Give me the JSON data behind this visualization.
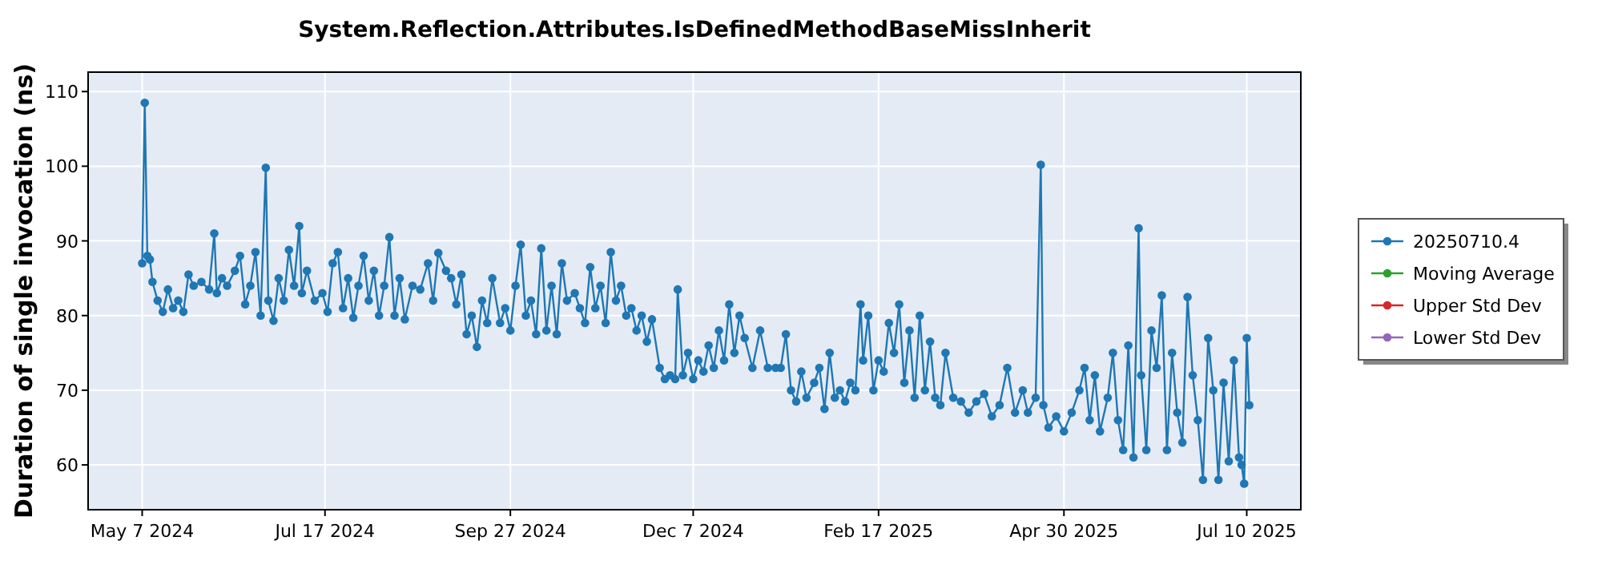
{
  "chart_data": {
    "type": "line",
    "title": "System.Reflection.Attributes.IsDefinedMethodBaseMissInherit",
    "ylabel": "Duration of single invocation (ns)",
    "xlim": [
      "2024-04-16",
      "2025-07-31"
    ],
    "xticks": [
      {
        "value": "2024-05-07",
        "label": "May 7 2024"
      },
      {
        "value": "2024-07-17",
        "label": "Jul 17 2024"
      },
      {
        "value": "2024-09-27",
        "label": "Sep 27 2024"
      },
      {
        "value": "2024-12-07",
        "label": "Dec 7 2024"
      },
      {
        "value": "2025-02-17",
        "label": "Feb 17 2025"
      },
      {
        "value": "2025-04-30",
        "label": "Apr 30 2025"
      },
      {
        "value": "2025-07-10",
        "label": "Jul 10 2025"
      }
    ],
    "ylim": [
      54,
      112.6
    ],
    "yticks": [
      60,
      70,
      80,
      90,
      100,
      110
    ],
    "grid": true,
    "legend": "right",
    "marker": "circle",
    "line_style": "solid",
    "series": [
      {
        "name": "20250710.4",
        "color": "#1f77b4",
        "x": [
          "2024-05-07",
          "2024-05-08",
          "2024-05-09",
          "2024-05-10",
          "2024-05-11",
          "2024-05-13",
          "2024-05-15",
          "2024-05-17",
          "2024-05-19",
          "2024-05-21",
          "2024-05-23",
          "2024-05-25",
          "2024-05-27",
          "2024-05-30",
          "2024-06-02",
          "2024-06-04",
          "2024-06-05",
          "2024-06-07",
          "2024-06-09",
          "2024-06-12",
          "2024-06-14",
          "2024-06-16",
          "2024-06-18",
          "2024-06-20",
          "2024-06-22",
          "2024-06-24",
          "2024-06-25",
          "2024-06-27",
          "2024-06-29",
          "2024-07-01",
          "2024-07-03",
          "2024-07-05",
          "2024-07-07",
          "2024-07-08",
          "2024-07-10",
          "2024-07-13",
          "2024-07-16",
          "2024-07-18",
          "2024-07-20",
          "2024-07-22",
          "2024-07-24",
          "2024-07-26",
          "2024-07-28",
          "2024-07-30",
          "2024-08-01",
          "2024-08-03",
          "2024-08-05",
          "2024-08-07",
          "2024-08-09",
          "2024-08-11",
          "2024-08-13",
          "2024-08-15",
          "2024-08-17",
          "2024-08-20",
          "2024-08-23",
          "2024-08-26",
          "2024-08-28",
          "2024-08-30",
          "2024-09-02",
          "2024-09-04",
          "2024-09-06",
          "2024-09-08",
          "2024-09-10",
          "2024-09-12",
          "2024-09-14",
          "2024-09-16",
          "2024-09-18",
          "2024-09-20",
          "2024-09-23",
          "2024-09-25",
          "2024-09-27",
          "2024-09-29",
          "2024-10-01",
          "2024-10-03",
          "2024-10-05",
          "2024-10-07",
          "2024-10-09",
          "2024-10-11",
          "2024-10-13",
          "2024-10-15",
          "2024-10-17",
          "2024-10-19",
          "2024-10-22",
          "2024-10-24",
          "2024-10-26",
          "2024-10-28",
          "2024-10-30",
          "2024-11-01",
          "2024-11-03",
          "2024-11-05",
          "2024-11-07",
          "2024-11-09",
          "2024-11-11",
          "2024-11-13",
          "2024-11-15",
          "2024-11-17",
          "2024-11-19",
          "2024-11-21",
          "2024-11-24",
          "2024-11-26",
          "2024-11-28",
          "2024-11-30",
          "2024-12-01",
          "2024-12-03",
          "2024-12-05",
          "2024-12-07",
          "2024-12-09",
          "2024-12-11",
          "2024-12-13",
          "2024-12-15",
          "2024-12-17",
          "2024-12-19",
          "2024-12-21",
          "2024-12-23",
          "2024-12-25",
          "2024-12-27",
          "2024-12-30",
          "2025-01-02",
          "2025-01-05",
          "2025-01-08",
          "2025-01-10",
          "2025-01-12",
          "2025-01-14",
          "2025-01-16",
          "2025-01-18",
          "2025-01-20",
          "2025-01-23",
          "2025-01-25",
          "2025-01-27",
          "2025-01-29",
          "2025-01-31",
          "2025-02-02",
          "2025-02-04",
          "2025-02-06",
          "2025-02-08",
          "2025-02-10",
          "2025-02-11",
          "2025-02-13",
          "2025-02-15",
          "2025-02-17",
          "2025-02-19",
          "2025-02-21",
          "2025-02-23",
          "2025-02-25",
          "2025-02-27",
          "2025-03-01",
          "2025-03-03",
          "2025-03-05",
          "2025-03-07",
          "2025-03-09",
          "2025-03-11",
          "2025-03-13",
          "2025-03-15",
          "2025-03-18",
          "2025-03-21",
          "2025-03-24",
          "2025-03-27",
          "2025-03-30",
          "2025-04-02",
          "2025-04-05",
          "2025-04-08",
          "2025-04-11",
          "2025-04-14",
          "2025-04-16",
          "2025-04-19",
          "2025-04-21",
          "2025-04-22",
          "2025-04-24",
          "2025-04-27",
          "2025-04-30",
          "2025-05-03",
          "2025-05-06",
          "2025-05-08",
          "2025-05-10",
          "2025-05-12",
          "2025-05-14",
          "2025-05-17",
          "2025-05-19",
          "2025-05-21",
          "2025-05-23",
          "2025-05-25",
          "2025-05-27",
          "2025-05-29",
          "2025-05-30",
          "2025-06-01",
          "2025-06-03",
          "2025-06-05",
          "2025-06-07",
          "2025-06-09",
          "2025-06-11",
          "2025-06-13",
          "2025-06-15",
          "2025-06-17",
          "2025-06-19",
          "2025-06-21",
          "2025-06-23",
          "2025-06-25",
          "2025-06-27",
          "2025-06-29",
          "2025-07-01",
          "2025-07-03",
          "2025-07-05",
          "2025-07-07",
          "2025-07-08",
          "2025-07-09",
          "2025-07-10",
          "2025-07-11"
        ],
        "values": [
          87,
          108.5,
          88,
          87.5,
          84.5,
          82,
          80.5,
          83.5,
          81,
          82,
          80.5,
          85.5,
          84,
          84.5,
          83.5,
          91,
          83,
          85,
          84,
          86,
          88,
          81.5,
          84,
          88.5,
          80,
          99.8,
          82,
          79.3,
          85,
          82,
          88.8,
          84,
          92,
          83,
          86,
          82,
          83,
          80.5,
          87,
          88.5,
          81,
          85,
          79.7,
          84,
          88,
          82,
          86,
          80,
          84,
          90.5,
          80,
          85,
          79.5,
          84,
          83.5,
          87,
          82,
          88.4,
          86,
          85,
          81.5,
          85.5,
          77.5,
          80,
          75.8,
          82,
          79,
          85,
          79,
          81,
          78,
          84,
          89.5,
          80,
          82,
          77.5,
          89,
          78,
          84,
          77.5,
          87,
          82,
          83,
          81,
          79,
          86.5,
          81,
          84,
          79,
          88.5,
          82,
          84,
          80,
          81,
          78,
          80,
          76.5,
          79.5,
          73,
          71.5,
          72,
          71.5,
          83.5,
          72,
          75,
          71.5,
          74,
          72.5,
          76,
          73,
          78,
          74,
          81.5,
          75,
          80,
          77,
          73,
          78,
          73,
          73,
          73,
          77.5,
          70,
          68.5,
          72.5,
          69,
          71,
          73,
          67.5,
          75,
          69,
          70,
          68.5,
          71,
          70,
          81.5,
          74,
          80,
          70,
          74,
          72.5,
          79,
          75,
          81.5,
          71,
          78,
          69,
          80,
          70,
          76.5,
          69,
          68,
          75,
          69,
          68.5,
          67,
          68.5,
          69.5,
          66.5,
          68,
          73,
          67,
          70,
          67,
          69,
          100.2,
          68,
          65,
          66.5,
          64.5,
          67,
          70,
          73,
          66,
          72,
          64.5,
          69,
          75,
          66,
          62,
          76,
          61,
          91.7,
          72,
          62,
          78,
          73,
          82.7,
          62,
          75,
          67,
          63,
          82.5,
          72,
          66,
          58,
          77,
          70,
          58,
          71,
          60.5,
          74,
          61,
          60,
          57.5,
          77,
          68
        ]
      },
      {
        "name": "Moving Average",
        "color": "#2ca02c"
      },
      {
        "name": "Upper Std Dev",
        "color": "#d62728"
      },
      {
        "name": "Lower Std Dev",
        "color": "#9467bd"
      }
    ]
  }
}
